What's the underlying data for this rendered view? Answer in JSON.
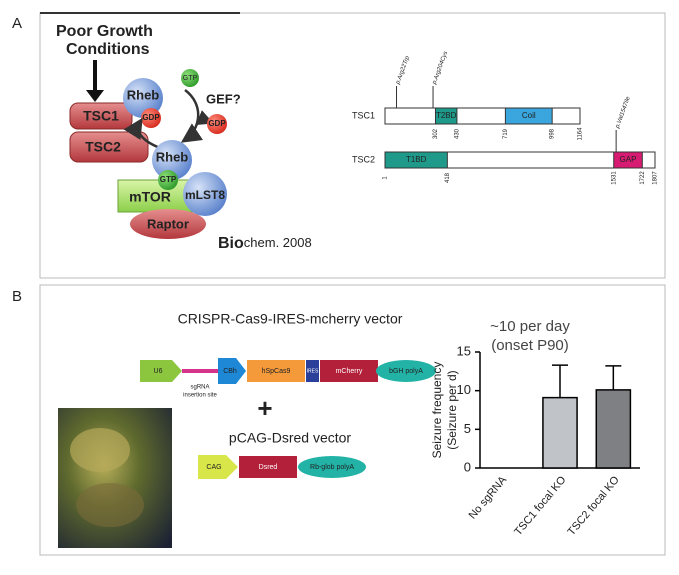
{
  "panel_a": {
    "label": "A",
    "pathway": {
      "condition": [
        "Poor Growth",
        "Conditions"
      ],
      "tsc1": "TSC1",
      "tsc2": "TSC2",
      "rheb_top": "Rheb",
      "gdp_top": "GDP",
      "gtp_free": "GTP",
      "gef": "GEF?",
      "gdp_free": "GDP",
      "rheb_bottom": "Rheb",
      "gtp_bound": "GTP",
      "mtor": "mTOR",
      "mlst8": "mLST8",
      "raptor": "Raptor",
      "citation_bold": "Bio",
      "citation": "chem. 2008"
    },
    "proteins": [
      {
        "name": "TSC1",
        "length": 1164,
        "domains": [
          {
            "name": "T2BD",
            "start": 302,
            "end": 430,
            "color": "#1f9a8a"
          },
          {
            "name": "Coil",
            "start": 719,
            "end": 998,
            "color": "#3aa6dd"
          }
        ],
        "mutations": [
          "p.Arg22Trp",
          "p.Arg204Cys"
        ]
      },
      {
        "name": "TSC2",
        "length": 1807,
        "domains": [
          {
            "name": "T1BD",
            "start": 1,
            "end": 418,
            "color": "#1f9a8a"
          },
          {
            "name": "GAP",
            "start": 1531,
            "end": 1722,
            "color": "#d81b72"
          }
        ],
        "mutations": [
          "p.Val1547Ile"
        ]
      }
    ]
  },
  "panel_b": {
    "label": "B",
    "vector1": {
      "title": "CRISPR-Cas9-IRES-mcherry vector",
      "promoter": "U6",
      "insertion": [
        "sgRNA",
        "insertion site"
      ],
      "promoter2": "CBh",
      "cas9": "hSpCas9",
      "ires": "IRES",
      "reporter": "mCherry",
      "polya": "bGH polyA"
    },
    "plus": "+",
    "vector2": {
      "title": "pCAG-Dsred vector",
      "promoter": "CAG",
      "reporter": "Dsred",
      "polya": "Rb-glob polyA"
    },
    "annotation": [
      "~10 per day",
      "(onset P90)"
    ]
  },
  "chart_data": {
    "type": "bar",
    "ylabel": [
      "Seizure frequency",
      "(Seizure per d)"
    ],
    "categories": [
      "No sgRNA",
      "TSC1 focal KO",
      "TSC2 focal KO"
    ],
    "values": [
      0,
      9.1,
      10.1
    ],
    "errors": [
      null,
      4.2,
      3.1
    ],
    "colors": [
      "#c0c4c8",
      "#c0c4c8",
      "#7e8084"
    ],
    "ylim": [
      0,
      15
    ],
    "yticks": [
      0,
      5,
      10,
      15
    ]
  }
}
